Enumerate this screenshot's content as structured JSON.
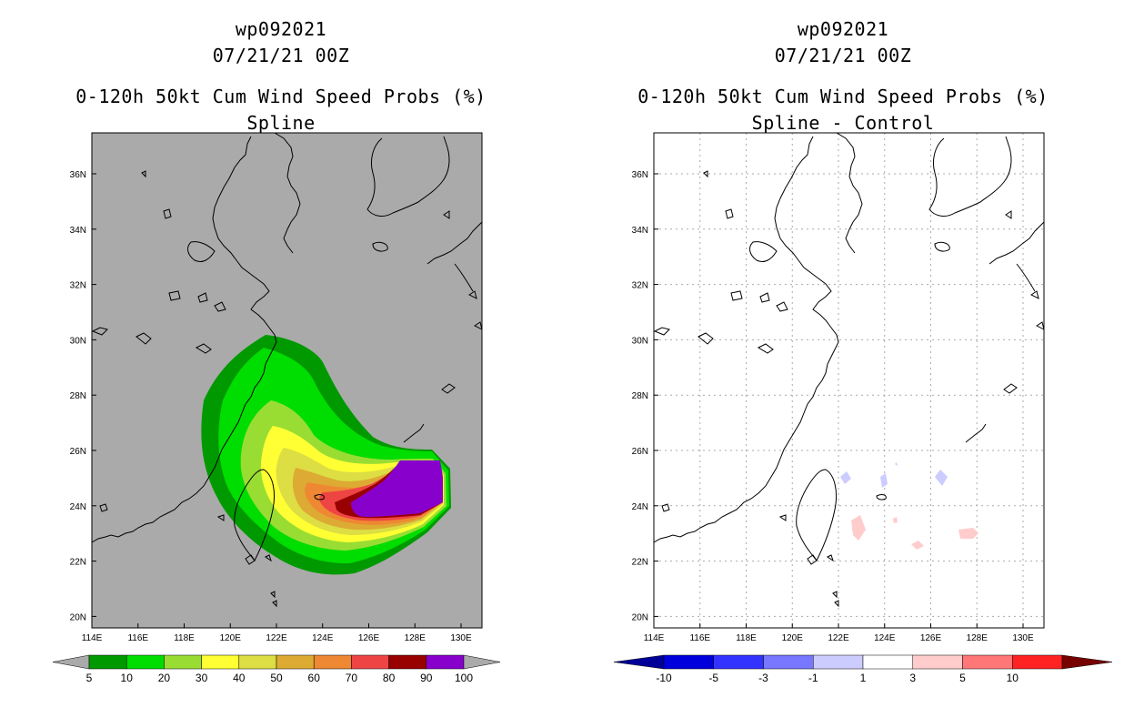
{
  "left_panel": {
    "title_lines": [
      "wp092021",
      "07/21/21 00Z",
      "0-120h 50kt Cum Wind Speed Probs (%)",
      "Spline"
    ],
    "background": "#aaaaaa",
    "colorbar": {
      "labels": [
        "5",
        "10",
        "20",
        "30",
        "40",
        "50",
        "60",
        "70",
        "80",
        "90",
        "100"
      ],
      "colors": [
        "#009900",
        "#00dd00",
        "#99dd33",
        "#ffff33",
        "#dddd44",
        "#ddaa33",
        "#ee8833",
        "#ee4444",
        "#990000",
        "#8800cc"
      ],
      "end_color": "#aaaaaa"
    }
  },
  "right_panel": {
    "title_lines": [
      "wp092021",
      "07/21/21 00Z",
      "0-120h 50kt Cum Wind Speed Probs (%)",
      "Spline - Control"
    ],
    "background": "#ffffff",
    "colorbar": {
      "labels": [
        "-10",
        "-5",
        "-3",
        "-1",
        "1",
        "3",
        "5",
        "10"
      ],
      "colors": [
        "#0000dd",
        "#3333ff",
        "#7777ff",
        "#ccccff",
        "#ffffff",
        "#ffcccc",
        "#ff7777",
        "#ff2222",
        "#dd0000"
      ],
      "low_end_color": "#000099",
      "high_end_color": "#770000"
    }
  },
  "axes": {
    "lon_ticks": [
      "114E",
      "116E",
      "118E",
      "120E",
      "122E",
      "124E",
      "126E",
      "128E",
      "130E"
    ],
    "lat_ticks": [
      "36N",
      "34N",
      "32N",
      "30N",
      "28N",
      "26N",
      "24N",
      "22N",
      "20N"
    ]
  }
}
